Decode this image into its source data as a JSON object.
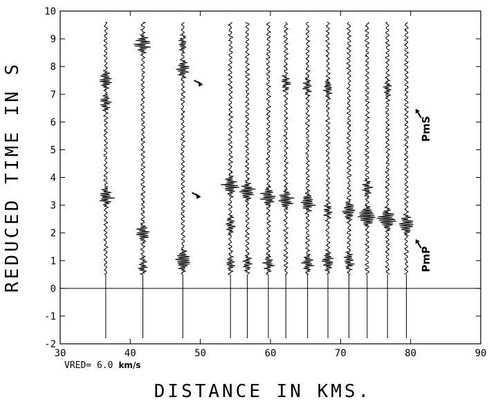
{
  "chart_data": {
    "type": "seismic-record-section",
    "xlabel": "DISTANCE IN KMS.",
    "ylabel": "REDUCED TIME IN S",
    "xlim": [
      30,
      90
    ],
    "ylim": [
      -2,
      10
    ],
    "xticks": [
      "30",
      "40",
      "50",
      "60",
      "70",
      "80",
      "90"
    ],
    "yticks": [
      "-2",
      "-1",
      "0",
      "1",
      "2",
      "3",
      "4",
      "5",
      "6",
      "7",
      "8",
      "9",
      "10"
    ],
    "reduction_velocity": {
      "prefix": "VRED= 6.0",
      "unit": "km/s"
    },
    "zero_line": 0,
    "traces": [
      {
        "distance": 36.5,
        "onset": 0.5,
        "top": 9.6,
        "events": [
          [
            3.3,
            0.55
          ],
          [
            7.5,
            0.45
          ],
          [
            6.7,
            0.4
          ]
        ]
      },
      {
        "distance": 41.8,
        "onset": 0.5,
        "top": 9.6,
        "events": [
          [
            8.8,
            0.6
          ],
          [
            2.0,
            0.5
          ],
          [
            0.8,
            0.3
          ]
        ]
      },
      {
        "distance": 47.5,
        "onset": 0.5,
        "top": 9.6,
        "events": [
          [
            1.0,
            0.65
          ],
          [
            7.9,
            0.45
          ],
          [
            8.8,
            0.3
          ]
        ]
      },
      {
        "distance": 54.3,
        "onset": 0.5,
        "top": 9.6,
        "events": [
          [
            3.7,
            0.6
          ],
          [
            2.3,
            0.35
          ],
          [
            0.9,
            0.3
          ]
        ]
      },
      {
        "distance": 56.7,
        "onset": 0.5,
        "top": 9.6,
        "events": [
          [
            3.5,
            0.55
          ],
          [
            0.9,
            0.35
          ]
        ]
      },
      {
        "distance": 59.7,
        "onset": 0.5,
        "top": 9.6,
        "events": [
          [
            3.3,
            0.6
          ],
          [
            0.9,
            0.35
          ]
        ]
      },
      {
        "distance": 62.2,
        "onset": 0.5,
        "top": 9.6,
        "events": [
          [
            3.2,
            0.6
          ],
          [
            7.4,
            0.3
          ]
        ]
      },
      {
        "distance": 65.3,
        "onset": 0.5,
        "top": 9.6,
        "events": [
          [
            3.1,
            0.55
          ],
          [
            0.9,
            0.4
          ],
          [
            7.3,
            0.3
          ]
        ]
      },
      {
        "distance": 68.2,
        "onset": 0.5,
        "top": 9.6,
        "events": [
          [
            1.0,
            0.45
          ],
          [
            7.2,
            0.35
          ],
          [
            2.8,
            0.3
          ]
        ]
      },
      {
        "distance": 71.2,
        "onset": 0.5,
        "top": 9.6,
        "events": [
          [
            2.8,
            0.55
          ],
          [
            1.0,
            0.4
          ]
        ]
      },
      {
        "distance": 73.8,
        "onset": 0.5,
        "top": 9.6,
        "events": [
          [
            2.6,
            0.75
          ],
          [
            3.6,
            0.35
          ]
        ]
      },
      {
        "distance": 76.7,
        "onset": 0.5,
        "top": 9.6,
        "events": [
          [
            2.5,
            0.75
          ],
          [
            7.2,
            0.3
          ]
        ]
      },
      {
        "distance": 79.4,
        "onset": 0.5,
        "top": 9.6,
        "events": [
          [
            2.3,
            0.6
          ]
        ]
      }
    ],
    "annotations": [
      {
        "type": "arrow",
        "x": 49.5,
        "y": 7.4,
        "direction": "right-down"
      },
      {
        "type": "arrow",
        "x": 49.2,
        "y": 3.35,
        "direction": "right-down"
      },
      {
        "type": "label",
        "text": "PmS",
        "x": 81.5,
        "y": 6.3
      },
      {
        "type": "label",
        "text": "PmP",
        "x": 81.5,
        "y": 1.6
      }
    ]
  }
}
